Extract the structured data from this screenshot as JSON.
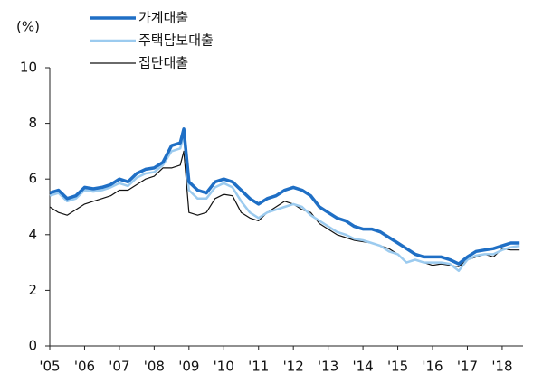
{
  "chart_data": {
    "type": "line",
    "y_label": "(%)",
    "x": [
      2005,
      2005.25,
      2005.5,
      2005.75,
      2006,
      2006.25,
      2006.5,
      2006.75,
      2007,
      2007.25,
      2007.5,
      2007.75,
      2008,
      2008.25,
      2008.5,
      2008.75,
      2008.85,
      2009,
      2009.25,
      2009.5,
      2009.75,
      2010,
      2010.25,
      2010.5,
      2010.75,
      2011,
      2011.25,
      2011.5,
      2011.75,
      2012,
      2012.25,
      2012.5,
      2012.75,
      2013,
      2013.25,
      2013.5,
      2013.75,
      2014,
      2014.25,
      2014.5,
      2014.75,
      2015,
      2015.25,
      2015.5,
      2015.75,
      2016,
      2016.25,
      2016.5,
      2016.75,
      2017,
      2017.25,
      2017.5,
      2017.75,
      2018,
      2018.25,
      2018.5
    ],
    "series": [
      {
        "name": "가계대출",
        "color": "#1f6fc5",
        "width": 3.5,
        "values": [
          5.5,
          5.6,
          5.3,
          5.4,
          5.7,
          5.65,
          5.7,
          5.8,
          6.0,
          5.9,
          6.2,
          6.35,
          6.4,
          6.6,
          7.2,
          7.3,
          7.8,
          5.9,
          5.6,
          5.5,
          5.9,
          6.0,
          5.9,
          5.6,
          5.3,
          5.1,
          5.3,
          5.4,
          5.6,
          5.7,
          5.6,
          5.4,
          5.0,
          4.8,
          4.6,
          4.5,
          4.3,
          4.2,
          4.2,
          4.1,
          3.9,
          3.7,
          3.5,
          3.3,
          3.2,
          3.2,
          3.2,
          3.1,
          2.95,
          3.2,
          3.4,
          3.45,
          3.5,
          3.6,
          3.7,
          3.7
        ]
      },
      {
        "name": "주택담보대출",
        "color": "#9ccbef",
        "width": 2.5,
        "values": [
          5.4,
          5.5,
          5.2,
          5.3,
          5.6,
          5.55,
          5.6,
          5.7,
          5.85,
          5.75,
          6.05,
          6.2,
          6.25,
          6.5,
          7.0,
          7.1,
          7.6,
          5.6,
          5.3,
          5.3,
          5.7,
          5.85,
          5.7,
          5.2,
          4.8,
          4.6,
          4.8,
          4.9,
          5.0,
          5.1,
          5.0,
          4.7,
          4.5,
          4.3,
          4.1,
          4.0,
          3.85,
          3.8,
          3.7,
          3.6,
          3.4,
          3.3,
          3.0,
          3.1,
          3.0,
          3.0,
          3.0,
          2.95,
          2.7,
          3.1,
          3.25,
          3.3,
          3.3,
          3.45,
          3.55,
          3.6
        ]
      },
      {
        "name": "집단대출",
        "color": "#111111",
        "width": 1.2,
        "values": [
          5.0,
          4.8,
          4.7,
          4.9,
          5.1,
          5.2,
          5.3,
          5.4,
          5.6,
          5.6,
          5.8,
          6.0,
          6.1,
          6.4,
          6.4,
          6.5,
          7.0,
          4.8,
          4.7,
          4.8,
          5.3,
          5.45,
          5.4,
          4.8,
          4.6,
          4.5,
          4.8,
          5.0,
          5.2,
          5.1,
          4.9,
          4.8,
          4.4,
          4.2,
          4.0,
          3.9,
          3.8,
          3.75,
          3.7,
          3.6,
          3.5,
          3.3,
          3.0,
          3.1,
          3.0,
          2.9,
          2.95,
          2.9,
          2.85,
          3.1,
          3.2,
          3.3,
          3.2,
          3.5,
          3.45,
          3.45
        ]
      }
    ],
    "xlim": [
      2005,
      2018.6
    ],
    "xticks": [
      {
        "value": 2005,
        "label": "'05"
      },
      {
        "value": 2006,
        "label": "'06"
      },
      {
        "value": 2007,
        "label": "'07"
      },
      {
        "value": 2008,
        "label": "'08"
      },
      {
        "value": 2009,
        "label": "'09"
      },
      {
        "value": 2010,
        "label": "'10"
      },
      {
        "value": 2011,
        "label": "'11"
      },
      {
        "value": 2012,
        "label": "'12"
      },
      {
        "value": 2013,
        "label": "'13"
      },
      {
        "value": 2014,
        "label": "'14"
      },
      {
        "value": 2015,
        "label": "'15"
      },
      {
        "value": 2016,
        "label": "'16"
      },
      {
        "value": 2017,
        "label": "'17"
      },
      {
        "value": 2018,
        "label": "'18"
      }
    ],
    "ylim": [
      0,
      10
    ],
    "yticks": [
      0,
      2,
      4,
      6,
      8,
      10
    ]
  }
}
